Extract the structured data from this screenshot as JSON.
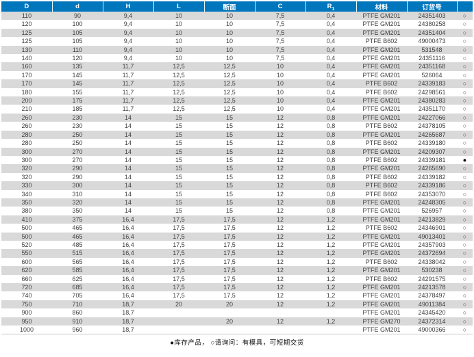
{
  "colors": {
    "header_bg": "#0076BD",
    "header_text": "#FFFFFF",
    "row_alt_bg": "#D9D9D9",
    "row_bg": "#FFFFFF",
    "body_text": "#3F3F3E",
    "circle_outline": "#4B4B4A",
    "circle_filled": "#000000"
  },
  "table": {
    "column_keys": [
      "D",
      "d",
      "H",
      "L",
      "cross-section",
      "C",
      "R1",
      "material",
      "order-number",
      "availability"
    ],
    "headers": [
      {
        "text": "D"
      },
      {
        "text": "d"
      },
      {
        "text": "H"
      },
      {
        "text": "L"
      },
      {
        "text": "断面"
      },
      {
        "text": "C"
      },
      {
        "text": "R",
        "sub": "1"
      },
      {
        "text": "材料"
      },
      {
        "text": "订货号"
      },
      {
        "text": ""
      }
    ],
    "rows": [
      [
        "110",
        "90",
        "9,4",
        "10",
        "10",
        "7,5",
        "0,4",
        "PTFE GM201",
        "24351403",
        "○"
      ],
      [
        "120",
        "100",
        "9,4",
        "10",
        "10",
        "7,5",
        "0,4",
        "PTFE GM201",
        "24380258",
        "○"
      ],
      [
        "125",
        "105",
        "9,4",
        "10",
        "10",
        "7,5",
        "0,4",
        "PTFE GM201",
        "24351404",
        "○"
      ],
      [
        "125",
        "105",
        "9,4",
        "10",
        "10",
        "7,5",
        "0,4",
        "PTFE B602",
        "49000473",
        "○"
      ],
      [
        "130",
        "110",
        "9,4",
        "10",
        "10",
        "7,5",
        "0,4",
        "PTFE GM201",
        "531548",
        "○"
      ],
      [
        "140",
        "120",
        "9,4",
        "10",
        "10",
        "7,5",
        "0,4",
        "PTFE GM201",
        "24351116",
        "○"
      ],
      [
        "160",
        "135",
        "11,7",
        "12,5",
        "12,5",
        "10",
        "0,4",
        "PTFE GM201",
        "24351168",
        "○"
      ],
      [
        "170",
        "145",
        "11,7",
        "12,5",
        "12,5",
        "10",
        "0,4",
        "PTFE GM201",
        "526064",
        "○"
      ],
      [
        "170",
        "145",
        "11,7",
        "12,5",
        "12,5",
        "10",
        "0,4",
        "PTFE B602",
        "24339183",
        "○"
      ],
      [
        "180",
        "155",
        "11,7",
        "12,5",
        "12,5",
        "10",
        "0,4",
        "PTFE B602",
        "24298561",
        "○"
      ],
      [
        "200",
        "175",
        "11,7",
        "12,5",
        "12,5",
        "10",
        "0,4",
        "PTFE GM201",
        "24380283",
        "○"
      ],
      [
        "210",
        "185",
        "11,7",
        "12,5",
        "12,5",
        "10",
        "0,4",
        "PTFE GM201",
        "24351170",
        "○"
      ],
      [
        "260",
        "230",
        "14",
        "15",
        "15",
        "12",
        "0,8",
        "PTFE GM201",
        "24227066",
        "○"
      ],
      [
        "260",
        "230",
        "14",
        "15",
        "15",
        "12",
        "0,8",
        "PTFE B602",
        "24378105",
        "○"
      ],
      [
        "280",
        "250",
        "14",
        "15",
        "15",
        "12",
        "0,8",
        "PTFE GM201",
        "24265687",
        "○"
      ],
      [
        "280",
        "250",
        "14",
        "15",
        "15",
        "12",
        "0,8",
        "PTFE B602",
        "24339180",
        "○"
      ],
      [
        "300",
        "270",
        "14",
        "15",
        "15",
        "12",
        "0,8",
        "PTFE GM201",
        "24209307",
        "○"
      ],
      [
        "300",
        "270",
        "14",
        "15",
        "15",
        "12",
        "0,8",
        "PTFE B602",
        "24339181",
        "●"
      ],
      [
        "320",
        "290",
        "14",
        "15",
        "15",
        "12",
        "0,8",
        "PTFE GM201",
        "24265690",
        "○"
      ],
      [
        "320",
        "290",
        "14",
        "15",
        "15",
        "12",
        "0,8",
        "PTFE B602",
        "24339182",
        "○"
      ],
      [
        "330",
        "300",
        "14",
        "15",
        "15",
        "12",
        "0,8",
        "PTFE B602",
        "24339186",
        "○"
      ],
      [
        "340",
        "310",
        "14",
        "15",
        "15",
        "12",
        "0,8",
        "PTFE B602",
        "24353070",
        "○"
      ],
      [
        "350",
        "320",
        "14",
        "15",
        "15",
        "12",
        "0,8",
        "PTFE GM201",
        "24248305",
        "○"
      ],
      [
        "380",
        "350",
        "14",
        "15",
        "15",
        "12",
        "0,8",
        "PTFE GM201",
        "526957",
        "○"
      ],
      [
        "410",
        "375",
        "16,4",
        "17,5",
        "17,5",
        "12",
        "1,2",
        "PTFE GM201",
        "24213829",
        "○"
      ],
      [
        "500",
        "465",
        "16,4",
        "17,5",
        "17,5",
        "12",
        "1,2",
        "PTFE B602",
        "24346901",
        "○"
      ],
      [
        "500",
        "465",
        "16,4",
        "17,5",
        "17,5",
        "12",
        "1,2",
        "PTFE GM201",
        "49013401",
        "○"
      ],
      [
        "520",
        "485",
        "16,4",
        "17,5",
        "17,5",
        "12",
        "1,2",
        "PTFE GM201",
        "24357903",
        "○"
      ],
      [
        "550",
        "515",
        "16,4",
        "17,5",
        "17,5",
        "12",
        "1,2",
        "PTFE GM201",
        "24372694",
        "○"
      ],
      [
        "600",
        "565",
        "16,4",
        "17,5",
        "17,5",
        "12",
        "1,2",
        "PTFE B602",
        "24338042",
        "○"
      ],
      [
        "620",
        "585",
        "16,4",
        "17,5",
        "17,5",
        "12",
        "1,2",
        "PTFE GM201",
        "530238",
        "○"
      ],
      [
        "660",
        "625",
        "16,4",
        "17,5",
        "17,5",
        "12",
        "1,2",
        "PTFE B602",
        "24291575",
        "○"
      ],
      [
        "720",
        "685",
        "16,4",
        "17,5",
        "17,5",
        "12",
        "1,2",
        "PTFE GM201",
        "24213578",
        "○"
      ],
      [
        "740",
        "705",
        "16,4",
        "17,5",
        "17,5",
        "12",
        "1,2",
        "PTFE GM201",
        "24378497",
        "○"
      ],
      [
        "750",
        "710",
        "18,7",
        "20",
        "20",
        "12",
        "1,2",
        "PTFE GM201",
        "49011384",
        "○"
      ],
      [
        "900",
        "860",
        "18,7",
        "",
        "",
        "",
        "",
        "PTFE GM201",
        "24345420",
        "○"
      ],
      [
        "950",
        "910",
        "18,7",
        "",
        "20",
        "12",
        "1,2",
        "PTFE GM270",
        "24372314",
        "○"
      ],
      [
        "1000",
        "960",
        "18,7",
        "",
        "",
        "",
        "",
        "PTFE GM201",
        "49000366",
        "○"
      ]
    ]
  },
  "legend": {
    "in_stock_symbol": "●",
    "on_request_symbol": "○",
    "text": "●库存产品， ○请询问：有模具，可短期交货"
  }
}
